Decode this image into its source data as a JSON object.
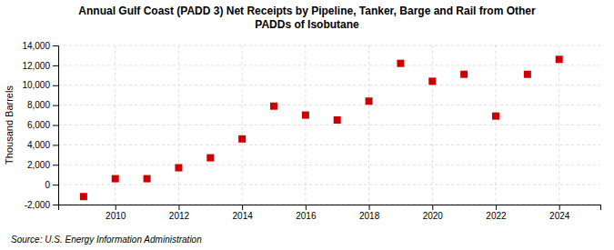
{
  "chart_data": {
    "type": "scatter",
    "title": "Annual Gulf Coast (PADD 3) Net Receipts by Pipeline, Tanker, Barge and Rail from Other\nPADDs of Isobutane",
    "ylabel": "Thousand Barrels",
    "source": "Source: U.S. Energy Information Administration",
    "x": [
      2009,
      2010,
      2011,
      2012,
      2013,
      2014,
      2015,
      2016,
      2017,
      2018,
      2019,
      2020,
      2021,
      2022,
      2023,
      2024
    ],
    "values": [
      -1200,
      600,
      600,
      1700,
      2700,
      4600,
      7900,
      7000,
      6500,
      8400,
      12200,
      10400,
      11100,
      6900,
      11100,
      12600
    ],
    "color": "#cc0000",
    "marker": "square",
    "grid": true,
    "xlim": [
      2008.2,
      2025.3
    ],
    "xticks": [
      2010,
      2012,
      2014,
      2016,
      2018,
      2020,
      2022,
      2024
    ],
    "ylim": [
      -2000,
      14000
    ],
    "yticks": [
      {
        "value": -2000,
        "label": "-2,000"
      },
      0,
      {
        "value": 2000,
        "label": "2,000"
      },
      {
        "value": 4000,
        "label": "4,000"
      },
      {
        "value": 6000,
        "label": "6,000"
      },
      {
        "value": 8000,
        "label": "8,000"
      },
      {
        "value": 10000,
        "label": "10,000"
      },
      {
        "value": 12000,
        "label": "12,000"
      },
      {
        "value": 14000,
        "label": "14,000"
      }
    ]
  }
}
